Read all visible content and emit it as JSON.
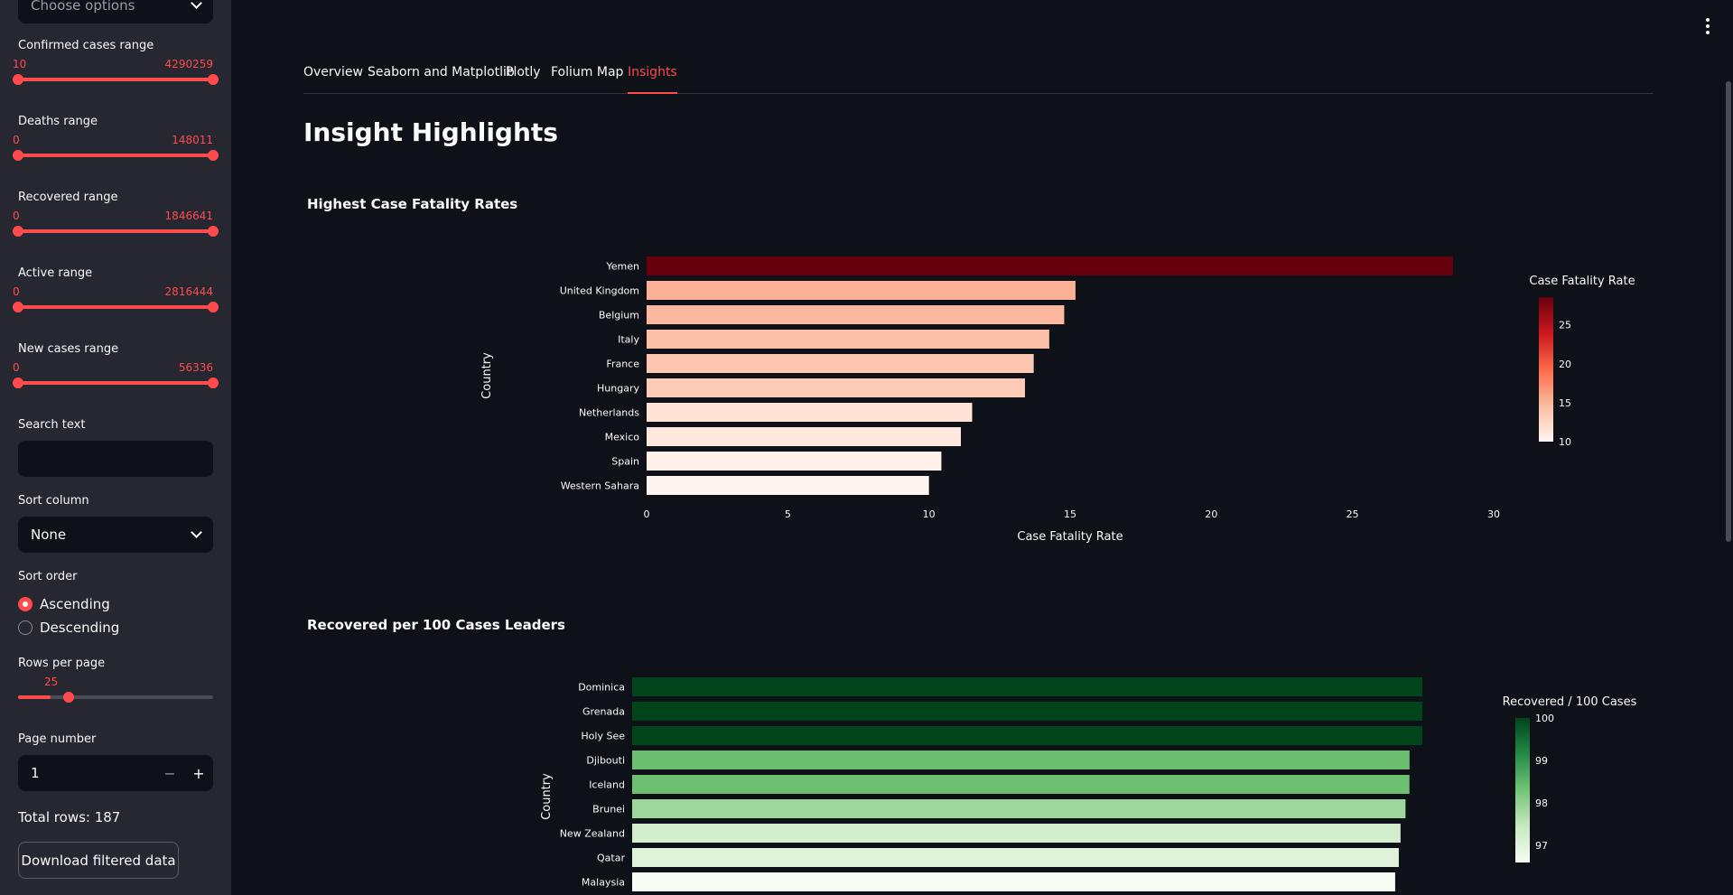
{
  "sidebar": {
    "choose_options": "Choose options",
    "sliders": [
      {
        "label": "Confirmed cases range",
        "min": "10",
        "max": "4290259"
      },
      {
        "label": "Deaths range",
        "min": "0",
        "max": "148011"
      },
      {
        "label": "Recovered range",
        "min": "0",
        "max": "1846641"
      },
      {
        "label": "Active range",
        "min": "0",
        "max": "2816444"
      },
      {
        "label": "New cases range",
        "min": "0",
        "max": "56336"
      }
    ],
    "search_label": "Search text",
    "search_value": "",
    "sort_column_label": "Sort column",
    "sort_column_value": "None",
    "sort_order_label": "Sort order",
    "sort_options": [
      "Ascending",
      "Descending"
    ],
    "sort_selected": "Ascending",
    "rows_label": "Rows per page",
    "rows_value": "25",
    "page_label": "Page number",
    "page_value": "1",
    "total_rows": "Total rows: 187",
    "download_label": "Download filtered data"
  },
  "tabs": [
    "Overview",
    "Seaborn and Matplotlib",
    "Plotly",
    "Folium Map",
    "Insights"
  ],
  "active_tab": "Insights",
  "page_title": "Insight Highlights",
  "colors": {
    "accent": "#ff4b4b",
    "bg": "#0e1117",
    "sidebar": "#262730"
  },
  "chart_data": [
    {
      "type": "bar",
      "orientation": "horizontal",
      "title": "Highest Case Fatality Rates",
      "xlabel": "Case Fatality Rate",
      "ylabel": "Country",
      "xlim": [
        0,
        30
      ],
      "xticks": [
        0,
        5,
        10,
        15,
        20,
        25,
        30
      ],
      "categories": [
        "Yemen",
        "United Kingdom",
        "Belgium",
        "Italy",
        "France",
        "Hungary",
        "Netherlands",
        "Mexico",
        "Spain",
        "Western Sahara"
      ],
      "values": [
        28.56,
        15.19,
        14.79,
        14.26,
        13.71,
        13.4,
        11.53,
        11.13,
        10.44,
        10.0
      ],
      "colorbar": {
        "title": "Case Fatality Rate",
        "ticks": [
          10,
          15,
          20,
          25
        ],
        "range": [
          10,
          28.56
        ],
        "scale": "Reds"
      }
    },
    {
      "type": "bar",
      "orientation": "horizontal",
      "title": "Recovered per 100 Cases Leaders",
      "ylabel": "Country",
      "categories": [
        "Dominica",
        "Grenada",
        "Holy See",
        "Djibouti",
        "Iceland",
        "Brunei",
        "New Zealand",
        "Qatar",
        "Malaysia"
      ],
      "values": [
        100,
        100,
        100,
        98.38,
        98.37,
        97.87,
        97.24,
        97.02,
        96.56
      ],
      "colorbar": {
        "title": "Recovered / 100 Cases",
        "ticks": [
          97,
          98,
          99,
          100
        ],
        "range": [
          96.6,
          100
        ],
        "scale": "Greens"
      }
    }
  ]
}
